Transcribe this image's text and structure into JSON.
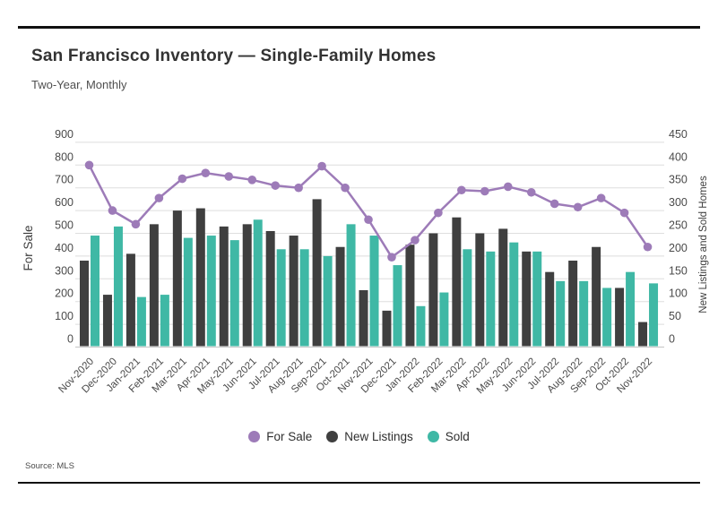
{
  "page": {
    "title": "San Francisco Inventory — Single-Family Homes",
    "subtitle": "Two-Year, Monthly",
    "source": "Source: MLS"
  },
  "legend": [
    {
      "label": "For Sale",
      "color": "#9d7bb8"
    },
    {
      "label": "New Listings",
      "color": "#3f3f3f"
    },
    {
      "label": "Sold",
      "color": "#3fb8a5"
    }
  ],
  "chart_data": {
    "type": "combo (line + grouped bar), dual axis",
    "title": "San Francisco Inventory — Single-Family Homes",
    "subtitle": "Two-Year, Monthly",
    "grid": "horizontal",
    "legend_position": "bottom-center",
    "categories": [
      "Nov-2020",
      "Dec-2020",
      "Jan-2021",
      "Feb-2021",
      "Mar-2021",
      "Apr-2021",
      "May-2021",
      "Jun-2021",
      "Jul-2021",
      "Aug-2021",
      "Sep-2021",
      "Oct-2021",
      "Nov-2021",
      "Dec-2021",
      "Jan-2022",
      "Feb-2022",
      "Mar-2022",
      "Apr-2022",
      "May-2022",
      "Jun-2022",
      "Jul-2022",
      "Aug-2022",
      "Sep-2022",
      "Oct-2022",
      "Nov-2022"
    ],
    "left_axis": {
      "title": "For Sale",
      "min": 0,
      "max": 900,
      "step": 100
    },
    "right_axis": {
      "title": "New Listings and Sold Homes",
      "min": 0,
      "max": 450,
      "step": 50
    },
    "series": [
      {
        "name": "For Sale",
        "type": "line",
        "axis": "left",
        "color": "#9d7bb8",
        "values": [
          800,
          600,
          540,
          655,
          740,
          765,
          750,
          735,
          710,
          700,
          795,
          700,
          560,
          395,
          470,
          590,
          690,
          685,
          705,
          680,
          630,
          615,
          655,
          590,
          440
        ]
      },
      {
        "name": "New Listings",
        "type": "bar",
        "axis": "right",
        "color": "#3f3f3f",
        "values": [
          190,
          115,
          205,
          270,
          300,
          305,
          265,
          270,
          255,
          245,
          325,
          220,
          125,
          80,
          225,
          250,
          285,
          250,
          260,
          210,
          165,
          190,
          220,
          130,
          55
        ]
      },
      {
        "name": "Sold",
        "type": "bar",
        "axis": "right",
        "color": "#3fb8a5",
        "values": [
          245,
          265,
          110,
          115,
          240,
          245,
          235,
          280,
          215,
          215,
          200,
          270,
          245,
          180,
          90,
          120,
          215,
          210,
          230,
          210,
          145,
          145,
          130,
          165,
          140
        ]
      }
    ],
    "colors": {
      "grid": "#dedede",
      "baseline": "#c4c4c4",
      "tick_text": "#4a4a4a",
      "axis_title_text": "#3d3d3d"
    }
  }
}
